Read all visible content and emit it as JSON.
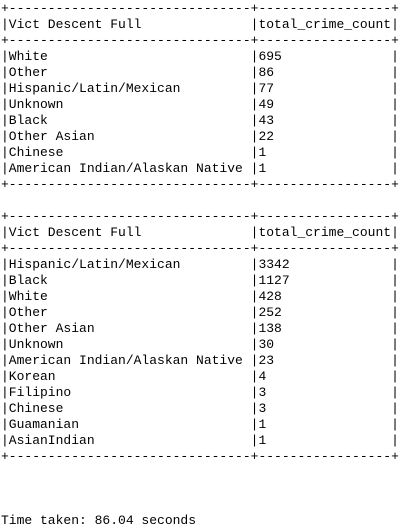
{
  "output": {
    "tables": [
      {
        "border": "+-------------------------------+-----------------+",
        "header": [
          "Vict Descent Full",
          "total_crime_count"
        ],
        "rows": [
          [
            "White",
            "695"
          ],
          [
            "Other",
            "86"
          ],
          [
            "Hispanic/Latin/Mexican",
            "77"
          ],
          [
            "Unknown",
            "49"
          ],
          [
            "Black",
            "43"
          ],
          [
            "Other Asian",
            "22"
          ],
          [
            "Chinese",
            "1"
          ],
          [
            "American Indian/Alaskan Native",
            "1"
          ]
        ]
      },
      {
        "border": "+-------------------------------+-----------------+",
        "header": [
          "Vict Descent Full",
          "total_crime_count"
        ],
        "rows": [
          [
            "Hispanic/Latin/Mexican",
            "3342"
          ],
          [
            "Black",
            "1127"
          ],
          [
            "White",
            "428"
          ],
          [
            "Other",
            "252"
          ],
          [
            "Other Asian",
            "138"
          ],
          [
            "Unknown",
            "30"
          ],
          [
            "American Indian/Alaskan Native",
            "23"
          ],
          [
            "Korean",
            "4"
          ],
          [
            "Filipino",
            "3"
          ],
          [
            "Chinese",
            "3"
          ],
          [
            "Guamanian",
            "1"
          ],
          [
            "AsianIndian",
            "1"
          ]
        ]
      }
    ],
    "time_taken": "Time taken: 86.04 seconds"
  }
}
